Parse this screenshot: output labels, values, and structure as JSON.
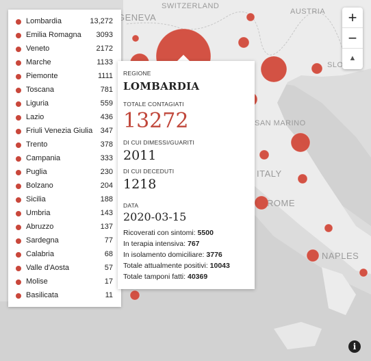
{
  "map": {
    "labels": {
      "geneva": "GENEVA",
      "switzerland": "SWITZERLAND",
      "austria": "AUSTRIA",
      "slovenia": "SLOVE",
      "san_marino": "SAN MARINO",
      "italy": "ITALY",
      "rome": "ROME",
      "naples": "NAPLES"
    }
  },
  "regions": [
    {
      "name": "Lombardia",
      "value": "13,272"
    },
    {
      "name": "Emilia Romagna",
      "value": "3093"
    },
    {
      "name": "Veneto",
      "value": "2172"
    },
    {
      "name": "Marche",
      "value": "1133"
    },
    {
      "name": "Piemonte",
      "value": "1111"
    },
    {
      "name": "Toscana",
      "value": "781"
    },
    {
      "name": "Liguria",
      "value": "559"
    },
    {
      "name": "Lazio",
      "value": "436"
    },
    {
      "name": "Friuli Venezia Giulia",
      "value": "347"
    },
    {
      "name": "Trento",
      "value": "378"
    },
    {
      "name": "Campania",
      "value": "333"
    },
    {
      "name": "Puglia",
      "value": "230"
    },
    {
      "name": "Bolzano",
      "value": "204"
    },
    {
      "name": "Sicilia",
      "value": "188"
    },
    {
      "name": "Umbria",
      "value": "143"
    },
    {
      "name": "Abruzzo",
      "value": "137"
    },
    {
      "name": "Sardegna",
      "value": "77"
    },
    {
      "name": "Calabria",
      "value": "68"
    },
    {
      "name": "Valle d'Aosta",
      "value": "57"
    },
    {
      "name": "Molise",
      "value": "17"
    },
    {
      "name": "Basilicata",
      "value": "11"
    }
  ],
  "popup": {
    "regione_label": "REGIONE",
    "regione": "LOMBARDIA",
    "totale_label": "TOTALE CONTAGIATI",
    "totale": "13272",
    "dimessi_label": "DI CUI DIMESSI/GUARITI",
    "dimessi": "2011",
    "deceduti_label": "DI CUI DECEDUTI",
    "deceduti": "1218",
    "data_label": "DATA",
    "data": "2020-03-15",
    "ricoverati_label": "Ricoverati con sintomi:",
    "ricoverati": "5500",
    "terapia_label": "In terapia intensiva:",
    "terapia": "767",
    "isolamento_label": "In isolamento domiciliare:",
    "isolamento": "3776",
    "positivi_label": "Totale attualmente positivi:",
    "positivi": "10043",
    "tamponi_label": "Totale tamponi fatti:",
    "tamponi": "40369"
  },
  "controls": {
    "zoom_in": "+",
    "zoom_out": "−",
    "compass": "▲",
    "info": "i"
  },
  "colors": {
    "bubble": "#d24a3b",
    "accent": "#c0463a"
  }
}
